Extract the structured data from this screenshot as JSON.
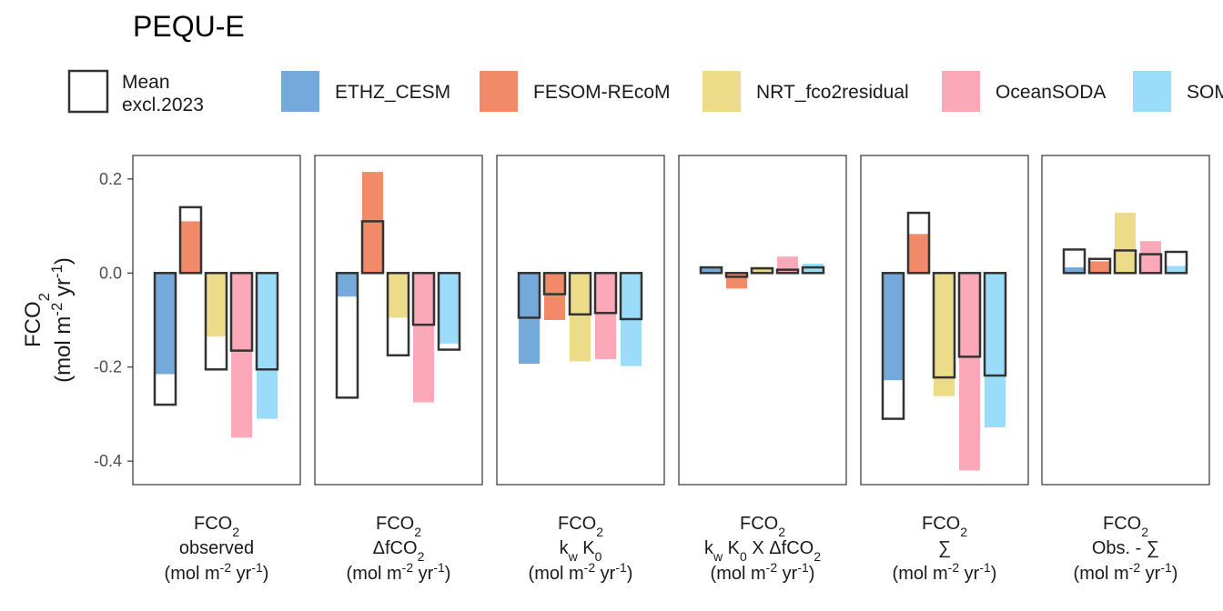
{
  "chart_data": {
    "type": "bar",
    "title": "PEQU-E",
    "ylabel": {
      "main": "FCO",
      "sub": "2",
      "unit_pre": "(mol m",
      "unit_sup1": "-2",
      "unit_mid": " yr",
      "unit_sup2": "-1",
      "unit_post": ")"
    },
    "ylim": [
      -0.45,
      0.25
    ],
    "yticks": [
      {
        "value": 0.2,
        "label": "0.2"
      },
      {
        "value": 0.0,
        "label": "0.0"
      },
      {
        "value": -0.2,
        "label": "-0.2"
      },
      {
        "value": -0.4,
        "label": "-0.4"
      }
    ],
    "legend": {
      "placement": "top",
      "mean_label_line1": "Mean",
      "mean_label_line2": "excl.2023",
      "entries": [
        {
          "name": "ETHZ_CESM",
          "color": "#74a9dc"
        },
        {
          "name": "FESOM-REcoM",
          "color": "#f08a68"
        },
        {
          "name": "NRT_fco2residual",
          "color": "#ecdc8a"
        },
        {
          "name": "OceanSODA",
          "color": "#fba9b8"
        },
        {
          "name": "SOM-FFN",
          "color": "#9adcfa"
        }
      ]
    },
    "panels": [
      {
        "label_lines": [
          [
            "FCO",
            "2"
          ],
          [
            "observed"
          ],
          [
            "(mol m",
            "-2",
            " yr",
            "-1",
            ")"
          ]
        ],
        "values": [
          -0.215,
          0.11,
          -0.135,
          -0.35,
          -0.31
        ],
        "means": [
          -0.28,
          0.14,
          -0.205,
          -0.165,
          -0.205
        ]
      },
      {
        "label_lines": [
          [
            "ΔfCO",
            "2"
          ]
        ],
        "label_lines_full": [
          [
            "FCO",
            "2"
          ],
          [
            "ΔfCO",
            "2"
          ],
          [
            "(mol m",
            "-2",
            " yr",
            "-1",
            ")"
          ]
        ],
        "values": [
          -0.05,
          0.215,
          -0.095,
          -0.275,
          -0.15
        ],
        "means": [
          -0.265,
          0.11,
          -0.175,
          -0.11,
          -0.163
        ]
      },
      {
        "label_lines_full": [
          [
            "FCO",
            "2"
          ],
          [
            "k",
            "w",
            " K",
            "0"
          ],
          [
            "(mol m",
            "-2",
            " yr",
            "-1",
            ")"
          ]
        ],
        "values": [
          -0.193,
          -0.1,
          -0.188,
          -0.183,
          -0.198
        ],
        "means": [
          -0.095,
          -0.045,
          -0.088,
          -0.085,
          -0.098
        ]
      },
      {
        "label_lines_full": [
          [
            "FCO",
            "2"
          ],
          [
            "k",
            "w",
            " K",
            "0",
            " X ΔfCO",
            "2"
          ],
          [
            "(mol m",
            "-2",
            " yr",
            "-1",
            ")"
          ]
        ],
        "values": [
          0.012,
          -0.033,
          0.013,
          0.035,
          0.02
        ],
        "means": [
          0.012,
          -0.008,
          0.01,
          0.007,
          0.012
        ]
      },
      {
        "label_lines_full": [
          [
            "FCO",
            "2"
          ],
          [
            "∑"
          ],
          [
            "(mol m",
            "-2",
            " yr",
            "-1",
            ")"
          ]
        ],
        "values": [
          -0.228,
          0.083,
          -0.262,
          -0.42,
          -0.328
        ],
        "means": [
          -0.31,
          0.128,
          -0.222,
          -0.178,
          -0.218
        ]
      },
      {
        "label_lines_full": [
          [
            "FCO",
            "2"
          ],
          [
            "Obs. - ∑"
          ],
          [
            "(mol m",
            "-2",
            " yr",
            "-1",
            ")"
          ]
        ],
        "values": [
          0.012,
          0.025,
          0.128,
          0.068,
          0.015
        ],
        "means": [
          0.05,
          0.03,
          0.048,
          0.04,
          0.045
        ]
      }
    ]
  }
}
